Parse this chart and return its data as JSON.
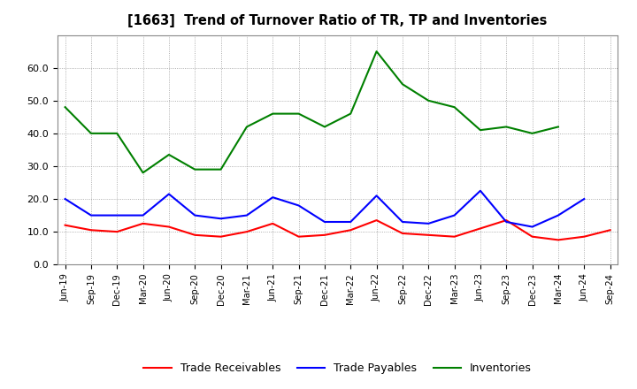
{
  "title": "[1663]  Trend of Turnover Ratio of TR, TP and Inventories",
  "x_labels": [
    "Jun-19",
    "Sep-19",
    "Dec-19",
    "Mar-20",
    "Jun-20",
    "Sep-20",
    "Dec-20",
    "Mar-21",
    "Jun-21",
    "Sep-21",
    "Dec-21",
    "Mar-22",
    "Jun-22",
    "Sep-22",
    "Dec-22",
    "Mar-23",
    "Jun-23",
    "Sep-23",
    "Dec-23",
    "Mar-24",
    "Jun-24",
    "Sep-24"
  ],
  "trade_receivables": [
    12.0,
    10.5,
    10.0,
    12.5,
    11.5,
    9.0,
    8.5,
    10.0,
    12.5,
    8.5,
    9.0,
    10.5,
    13.5,
    9.5,
    9.0,
    8.5,
    11.0,
    13.5,
    8.5,
    7.5,
    8.5,
    10.5
  ],
  "trade_payables": [
    20.0,
    15.0,
    15.0,
    15.0,
    21.5,
    15.0,
    14.0,
    15.0,
    20.5,
    18.0,
    13.0,
    13.0,
    21.0,
    13.0,
    12.5,
    15.0,
    22.5,
    13.0,
    11.5,
    15.0,
    20.0,
    null
  ],
  "inventories": [
    48.0,
    40.0,
    40.0,
    28.0,
    33.5,
    29.0,
    29.0,
    42.0,
    46.0,
    46.0,
    42.0,
    46.0,
    65.0,
    55.0,
    50.0,
    48.0,
    41.0,
    42.0,
    40.0,
    42.0,
    null,
    null
  ],
  "tr_color": "#ff0000",
  "tp_color": "#0000ff",
  "inv_color": "#008000",
  "background_color": "#ffffff",
  "grid_color": "#999999",
  "ylim": [
    0.0,
    70.0
  ],
  "yticks": [
    0.0,
    10.0,
    20.0,
    30.0,
    40.0,
    50.0,
    60.0
  ],
  "legend_labels": [
    "Trade Receivables",
    "Trade Payables",
    "Inventories"
  ]
}
